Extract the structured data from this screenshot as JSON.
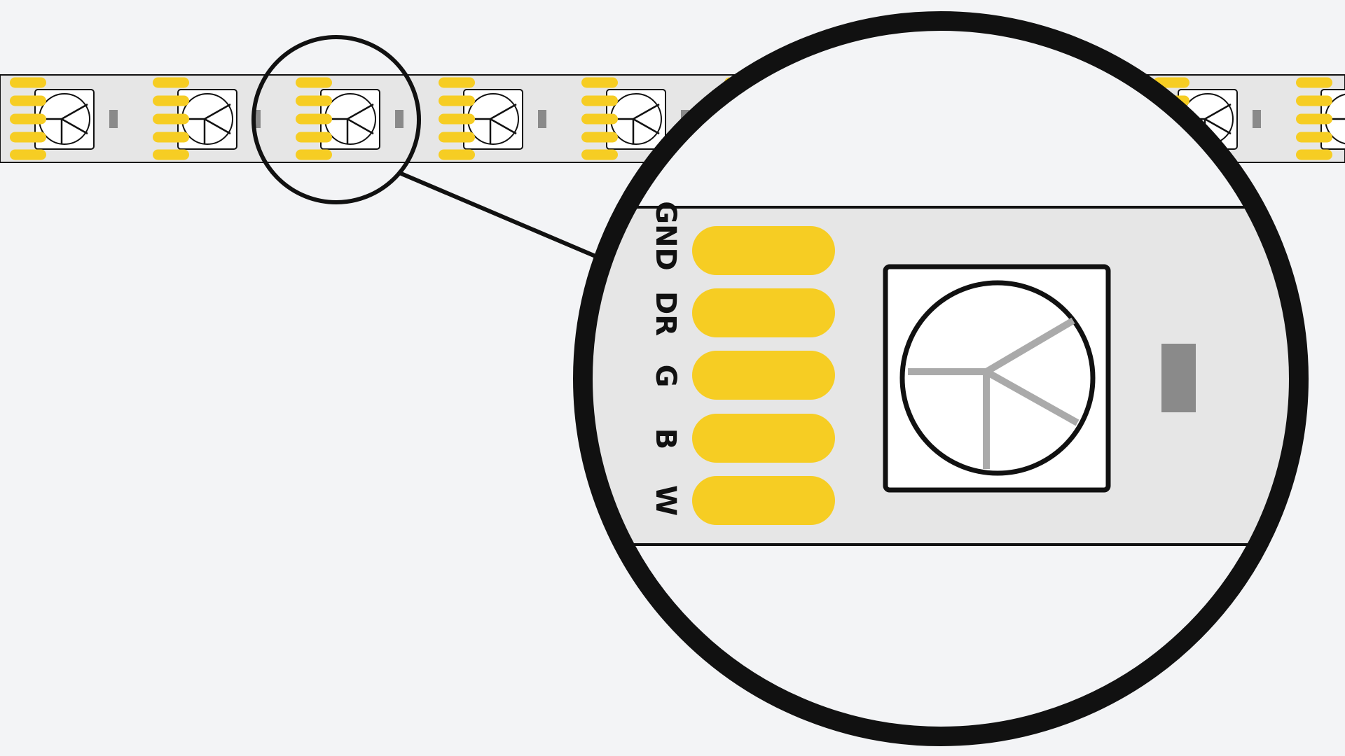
{
  "diagram": {
    "pins": [
      {
        "label": "GND"
      },
      {
        "label": "DR"
      },
      {
        "label": "G"
      },
      {
        "label": "B"
      },
      {
        "label": "W"
      }
    ],
    "colors": {
      "background": "#f3f4f6",
      "strip": "#e6e6e6",
      "pad": "#f6cd23",
      "led_body": "#ffffff",
      "resistor": "#8a8a8a",
      "outline": "#111111",
      "led_symbol_detail": "#aaaaaa"
    },
    "icons": {
      "led": "smd-led-icon",
      "resistor": "resistor-icon",
      "magnifier": "magnifier-circle-icon"
    }
  }
}
